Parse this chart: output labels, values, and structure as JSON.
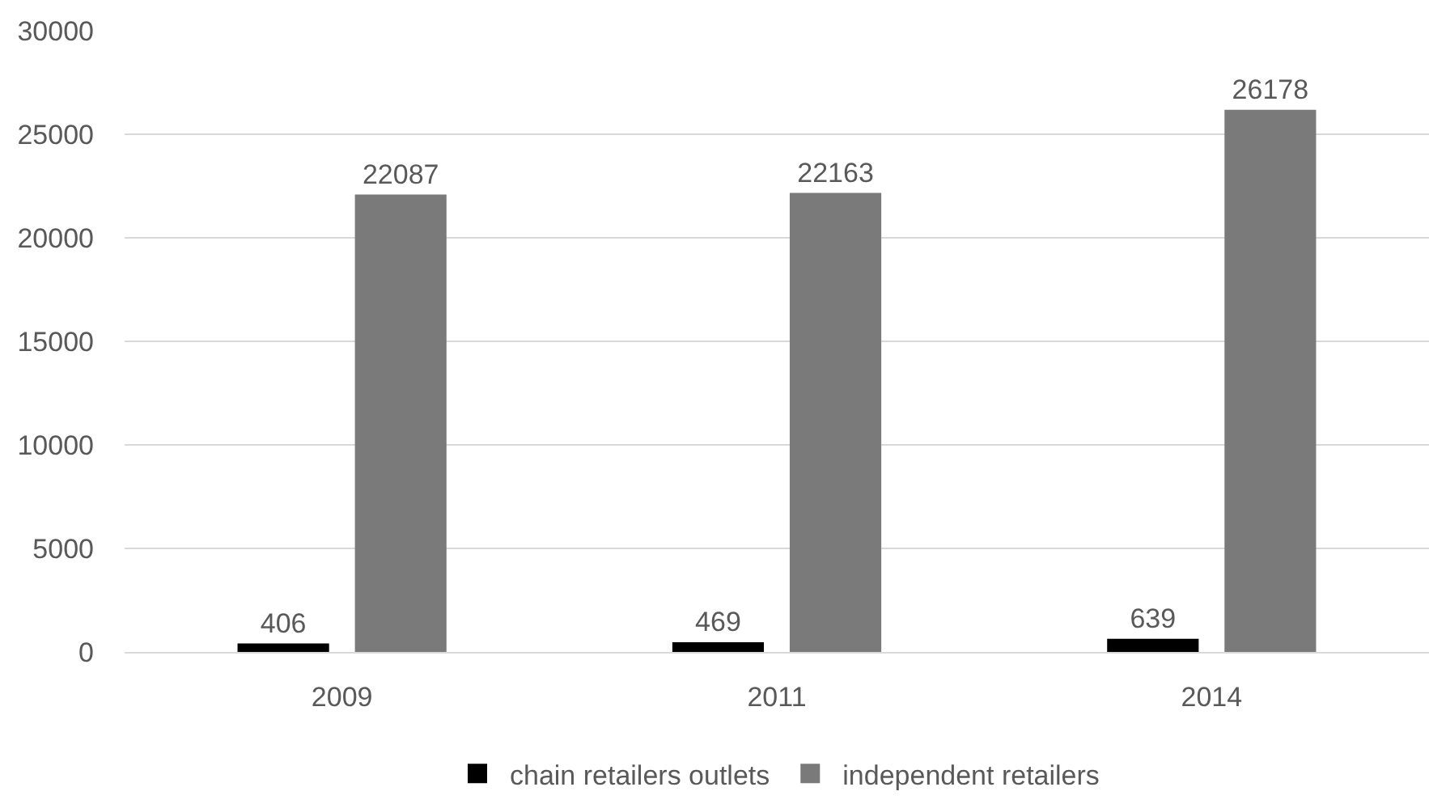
{
  "chart_data": {
    "type": "bar",
    "categories": [
      "2009",
      "2011",
      "2014"
    ],
    "series": [
      {
        "name": "chain retailers outlets",
        "color": "#000000",
        "values": [
          406,
          469,
          639
        ]
      },
      {
        "name": "independent retailers",
        "color": "#7a7a7a",
        "values": [
          22087,
          22163,
          26178
        ]
      }
    ],
    "ylim": [
      0,
      30000
    ],
    "yticks": [
      0,
      5000,
      10000,
      15000,
      20000,
      25000,
      30000
    ],
    "grid": "y",
    "legend": "bottom",
    "data_labels": true
  }
}
